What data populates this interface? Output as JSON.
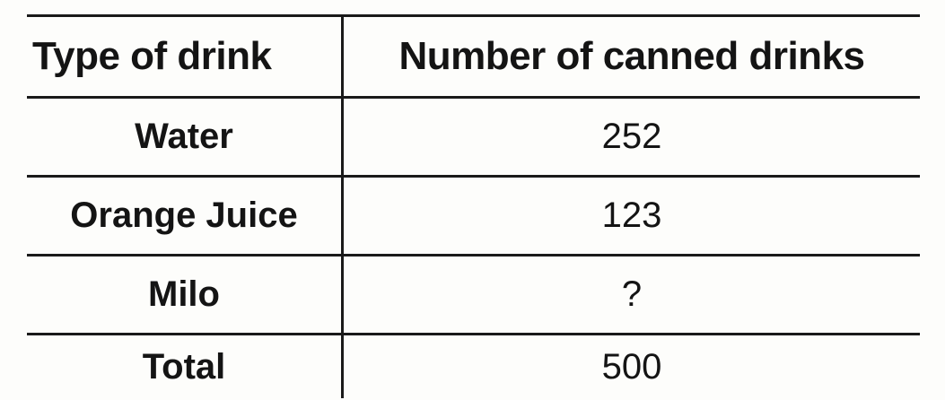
{
  "table": {
    "headers": {
      "type": "Type of drink",
      "count": "Number of canned drinks"
    },
    "rows": [
      {
        "type": "Water",
        "count": "252"
      },
      {
        "type": "Orange Juice",
        "count": "123"
      },
      {
        "type": "Milo",
        "count": "?"
      }
    ],
    "total": {
      "label": "Total",
      "count": "500"
    }
  }
}
